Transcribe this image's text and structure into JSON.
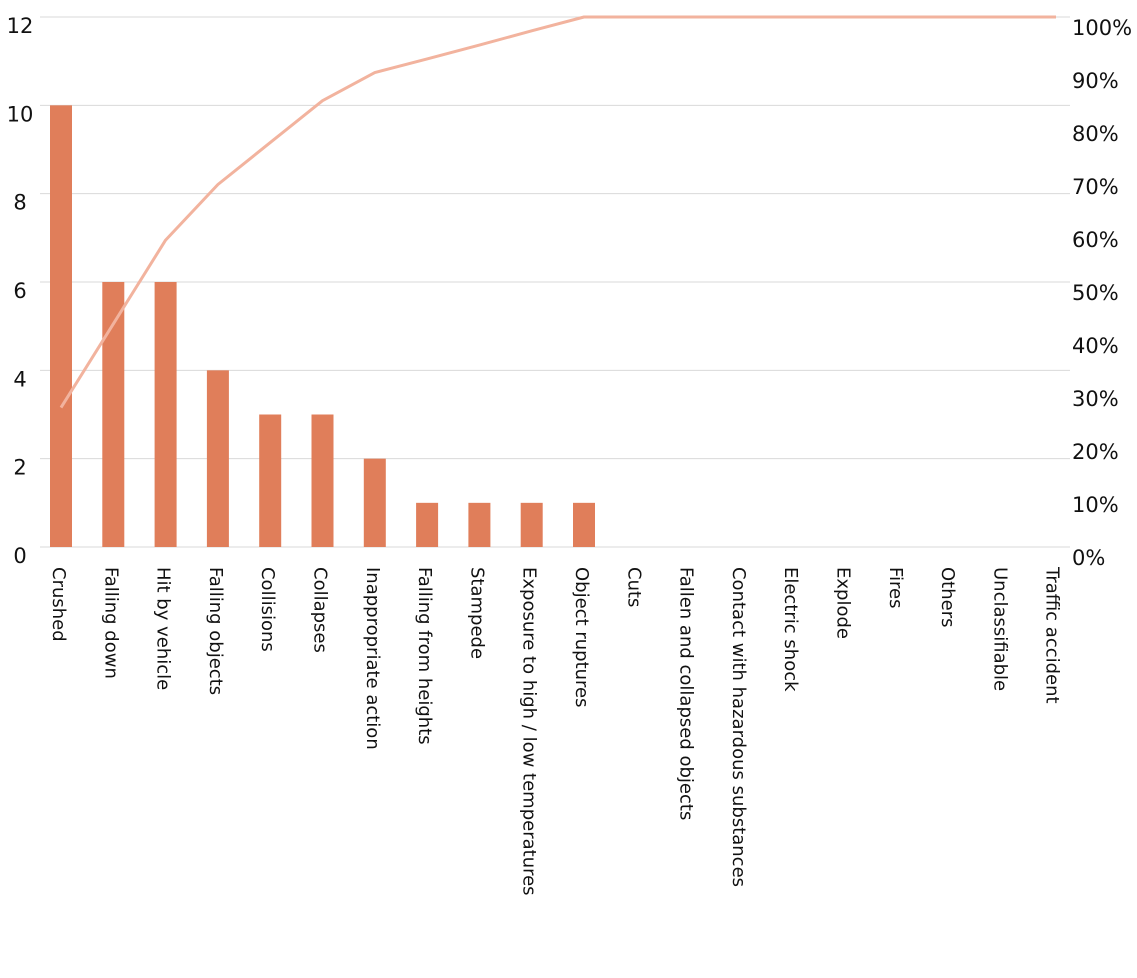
{
  "chart_data": {
    "type": "bar",
    "title": "",
    "xlabel": "",
    "ylabel": "",
    "categories": [
      "Crushed",
      "Falling down",
      "Hit by vehicle",
      "Falling objects",
      "Collisions",
      "Collapses",
      "Inappropriate action",
      "Falling from heights",
      "Stampede",
      "Exposure to high / low temperatures",
      "Object ruptures",
      "Cuts",
      "Fallen and collapsed objects",
      "Contact with hazardous substances",
      "Electric shock",
      "Explode",
      "Fires",
      "Others",
      "Unclassifiable",
      "Traffic accident"
    ],
    "series": [
      {
        "type": "bar",
        "color": "#e07e5a",
        "values": [
          10,
          6,
          6,
          4,
          3,
          3,
          2,
          1,
          1,
          1,
          1,
          0,
          0,
          0,
          0,
          0,
          0,
          0,
          0,
          0
        ]
      },
      {
        "type": "line",
        "axis": "right",
        "color": "#f2b39e",
        "values": [
          26.3,
          42.1,
          57.9,
          68.4,
          76.3,
          84.2,
          89.5,
          92.1,
          94.7,
          97.4,
          100,
          100,
          100,
          100,
          100,
          100,
          100,
          100,
          100,
          100
        ]
      }
    ],
    "ylim": [
      0,
      12
    ],
    "yticks": [
      "0",
      "2",
      "4",
      "6",
      "8",
      "10",
      "12"
    ],
    "y2lim": [
      0,
      100
    ],
    "y2ticks": [
      "0%",
      "10%",
      "20%",
      "30%",
      "40%",
      "50%",
      "60%",
      "70%",
      "80%",
      "90%",
      "100%"
    ],
    "grid": true,
    "legend": "none"
  }
}
